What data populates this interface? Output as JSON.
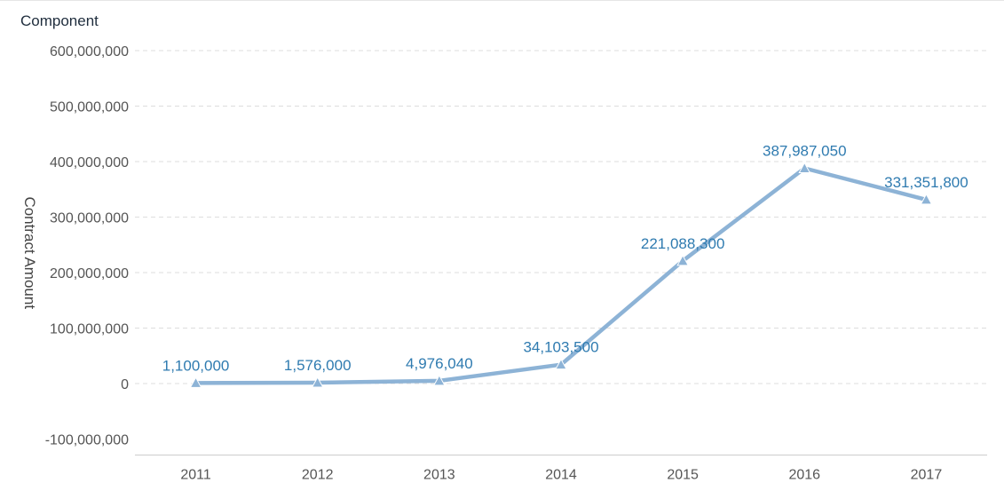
{
  "chart_data": {
    "type": "line",
    "title": "Component",
    "xlabel": "",
    "ylabel": "Contract Amount",
    "categories": [
      "2011",
      "2012",
      "2013",
      "2014",
      "2015",
      "2016",
      "2017"
    ],
    "series": [
      {
        "values": [
          1100000,
          1576000,
          4976040,
          34103500,
          221088300,
          387987050,
          331351800
        ],
        "labels": [
          "1,100,000",
          "1,576,000",
          "4,976,040",
          "34,103,500",
          "221,088,300",
          "387,987,050",
          "331,351,800"
        ]
      }
    ],
    "y_ticks": [
      600000000,
      500000000,
      400000000,
      300000000,
      200000000,
      100000000,
      0,
      -100000000
    ],
    "y_tick_labels": [
      "600,000,000",
      "500,000,000",
      "400,000,000",
      "300,000,000",
      "200,000,000",
      "100,000,000",
      "0",
      "-100,000,000"
    ],
    "ylim": [
      -100000000,
      600000000
    ],
    "grid": true,
    "marker": "triangle",
    "colors": {
      "line": "#8db3d6",
      "label": "#2f7bb0"
    }
  }
}
